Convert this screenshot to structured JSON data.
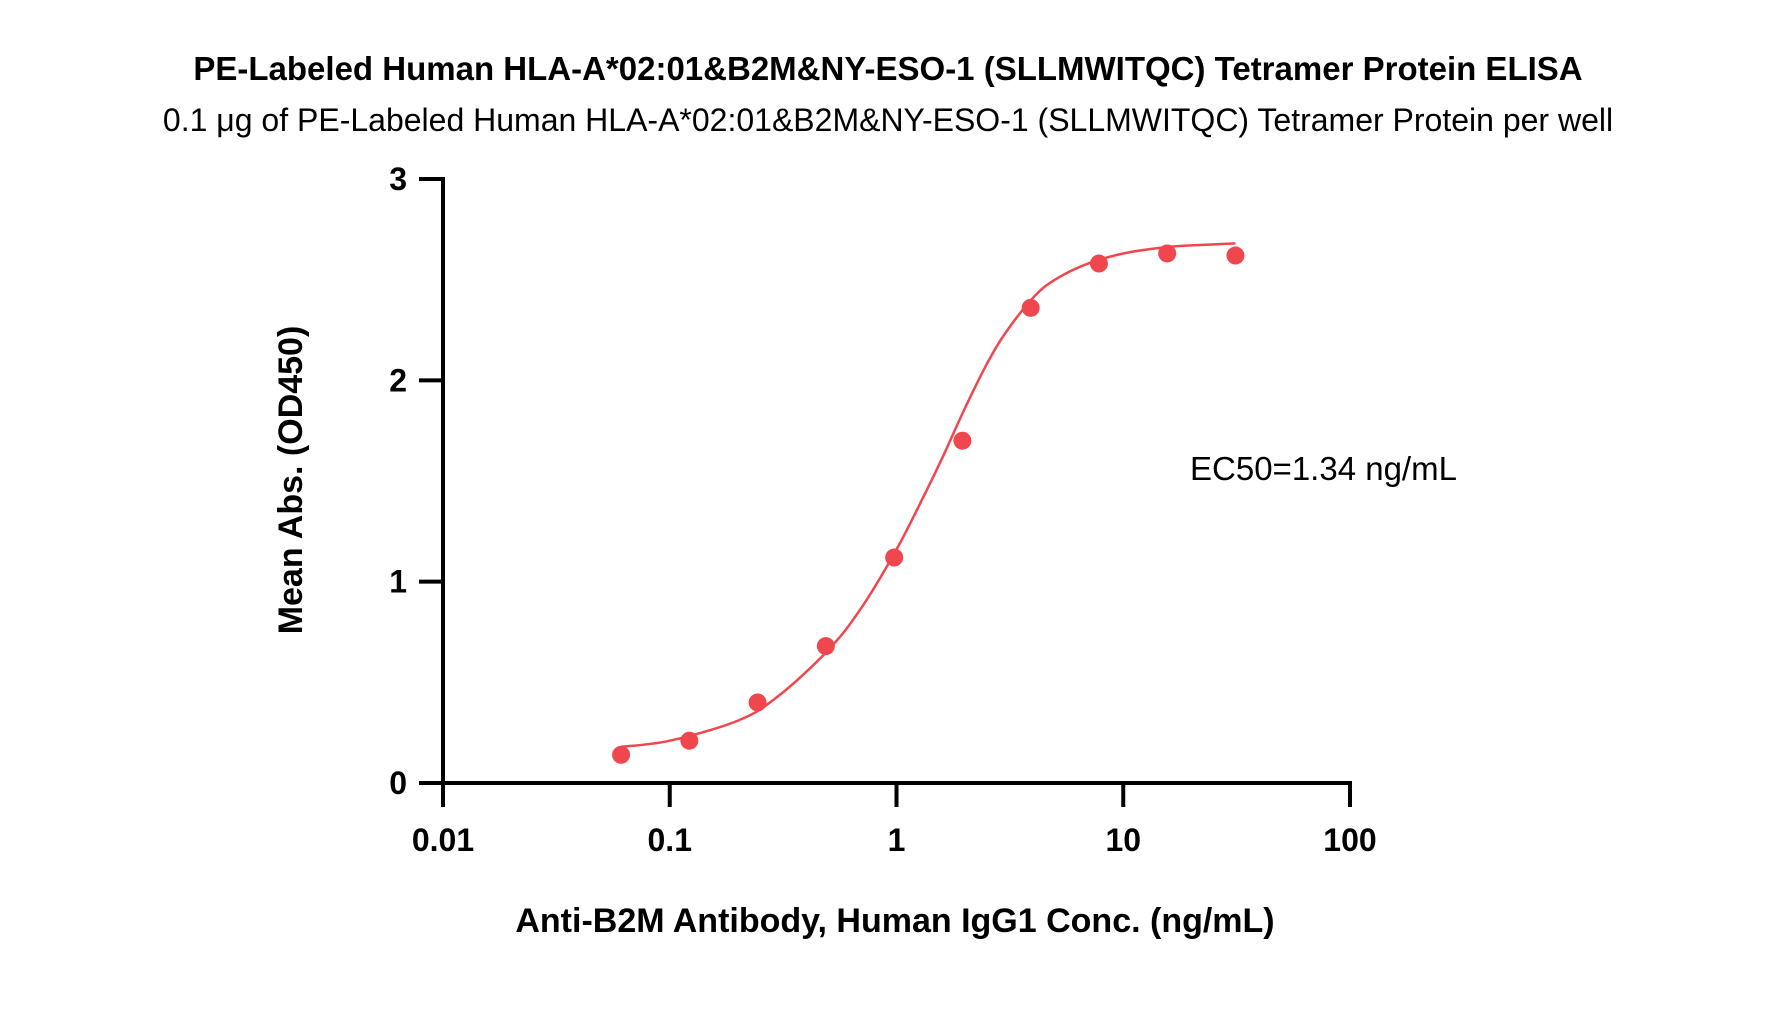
{
  "chart_data": {
    "type": "scatter",
    "title": "PE-Labeled Human HLA-A*02:01&B2M&NY-ESO-1 (SLLMWITQC) Tetramer Protein ELISA",
    "subtitle": "0.1 μg of PE-Labeled Human HLA-A*02:01&B2M&NY-ESO-1 (SLLMWITQC) Tetramer Protein per well",
    "xlabel": "Anti-B2M Antibody, Human IgG1 Conc. (ng/mL)",
    "ylabel": "Mean Abs. (OD450)",
    "x_scale": "log",
    "xlim": [
      0.01,
      100
    ],
    "ylim": [
      0,
      3
    ],
    "x_ticks": [
      0.01,
      0.1,
      1,
      10,
      100
    ],
    "x_tick_labels": [
      "0.01",
      "0.1",
      "1",
      "10",
      "100"
    ],
    "y_ticks": [
      0,
      1,
      2,
      3
    ],
    "y_tick_labels": [
      "0",
      "1",
      "2",
      "3"
    ],
    "grid": false,
    "color": "#f0474f",
    "points": {
      "x": [
        0.061,
        0.122,
        0.244,
        0.488,
        0.977,
        1.953,
        3.906,
        7.813,
        15.625,
        31.25
      ],
      "y": [
        0.14,
        0.21,
        0.4,
        0.68,
        1.12,
        1.7,
        2.36,
        2.58,
        2.63,
        2.62
      ]
    },
    "fit_curve": {
      "x": [
        0.061,
        0.1,
        0.2,
        0.3,
        0.5,
        0.7,
        1,
        1.34,
        1.6,
        2,
        2.5,
        3,
        4,
        5,
        7,
        10,
        15,
        20,
        31.25
      ],
      "y": [
        0.18,
        0.21,
        0.31,
        0.43,
        0.66,
        0.87,
        1.16,
        1.44,
        1.62,
        1.86,
        2.08,
        2.23,
        2.41,
        2.5,
        2.58,
        2.63,
        2.66,
        2.67,
        2.68
      ]
    },
    "annotations": [
      "EC50=1.34 ng/mL"
    ]
  }
}
